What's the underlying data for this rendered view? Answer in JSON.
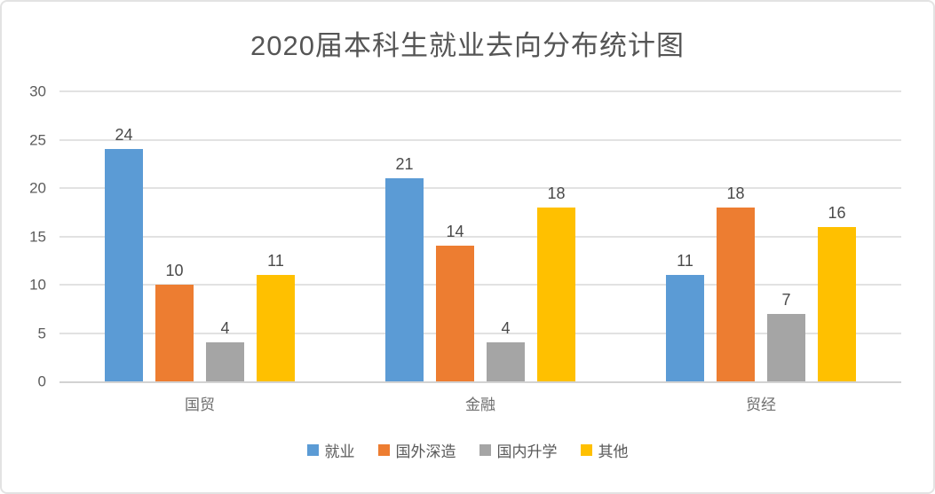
{
  "chart_data": {
    "type": "bar",
    "title": "2020届本科生就业去向分布统计图",
    "categories": [
      "国贸",
      "金融",
      "贸经"
    ],
    "series": [
      {
        "name": "就业",
        "color": "#5B9BD5",
        "values": [
          24,
          21,
          11
        ]
      },
      {
        "name": "国外深造",
        "color": "#ED7D31",
        "values": [
          10,
          14,
          18
        ]
      },
      {
        "name": "国内升学",
        "color": "#A5A5A5",
        "values": [
          4,
          4,
          7
        ]
      },
      {
        "name": "其他",
        "color": "#FFC000",
        "values": [
          11,
          18,
          16
        ]
      }
    ],
    "xlabel": "",
    "ylabel": "",
    "ylim": [
      0,
      30
    ],
    "y_ticks": [
      0,
      5,
      10,
      15,
      20,
      25,
      30
    ],
    "grid": true,
    "data_labels": true,
    "legend_position": "bottom",
    "colors": {
      "gridline": "#e2e2e2",
      "axis_line": "#d2d2d2",
      "title_text": "#555555",
      "tick_text": "#5c5c5c",
      "data_label_text": "#4a4a4a",
      "legend_text": "#595959",
      "frame_border": "#e3e3e3",
      "background": "#ffffff"
    }
  }
}
